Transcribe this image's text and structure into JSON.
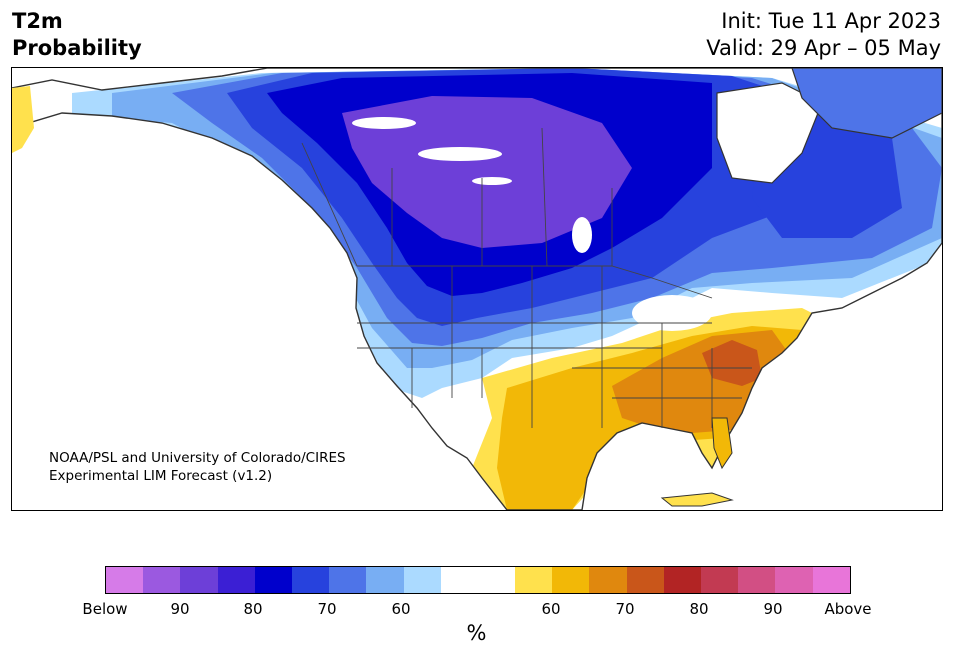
{
  "header": {
    "title_line1": "T2m",
    "title_line2": "Probability",
    "init": "Init: Tue 11 Apr 2023",
    "valid": "Valid: 29 Apr – 05 May"
  },
  "credit": {
    "line1": "NOAA/PSL and University of Colorado/CIRES",
    "line2": "Experimental LIM Forecast (v1.2)"
  },
  "colorbar": {
    "unit": "%",
    "colors": [
      "#d67be8",
      "#9b59e0",
      "#6d3fd8",
      "#3b1fd4",
      "#0000cc",
      "#2742dd",
      "#4e74e8",
      "#78aef3",
      "#abdaff",
      "#ffffff",
      "#ffffff",
      "#ffe14d",
      "#f2b807",
      "#e0880e",
      "#c9561a",
      "#b22424",
      "#c23a52",
      "#d24f84",
      "#de62b2",
      "#e875d9"
    ],
    "tick_labels": [
      "Below",
      "90",
      "80",
      "70",
      "60",
      "60",
      "70",
      "80",
      "90",
      "Above"
    ]
  },
  "map": {
    "region": "North America",
    "legend_colors": {
      "below_60": "#abdaff",
      "below_70": "#78aef3",
      "below_75": "#4e74e8",
      "below_80": "#2742dd",
      "below_85": "#0000cc",
      "below_90": "#6d3fd8",
      "above_60": "#ffe14d",
      "above_65": "#f2b807",
      "above_70": "#e0880e",
      "above_75": "#c9561a"
    }
  }
}
